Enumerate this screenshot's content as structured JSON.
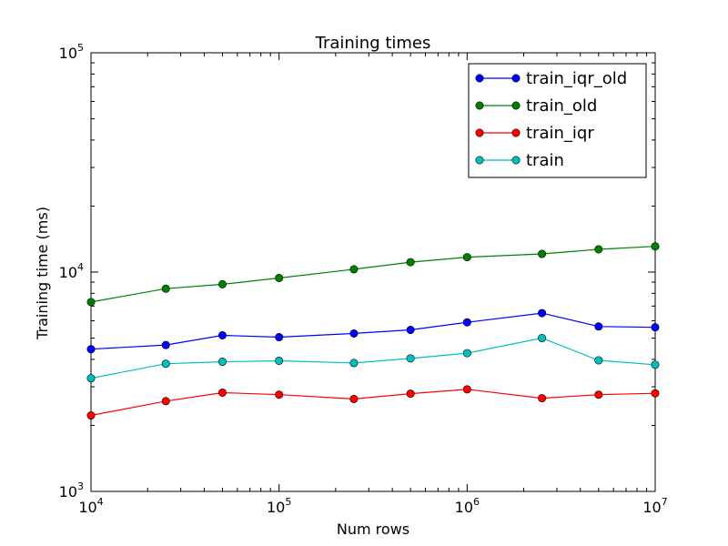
{
  "chart_data": {
    "type": "line",
    "title": "Training times",
    "xlabel": "Num rows",
    "ylabel": "Training time (ms)",
    "x_scale": "log",
    "y_scale": "log",
    "xlim": [
      10000,
      10000000
    ],
    "ylim": [
      1000,
      100000
    ],
    "x_ticks": [
      {
        "value": 10000,
        "base": "10",
        "exp": "4"
      },
      {
        "value": 100000,
        "base": "10",
        "exp": "5"
      },
      {
        "value": 1000000,
        "base": "10",
        "exp": "6"
      },
      {
        "value": 10000000,
        "base": "10",
        "exp": "7"
      }
    ],
    "y_ticks": [
      {
        "value": 1000,
        "base": "10",
        "exp": "3"
      },
      {
        "value": 10000,
        "base": "10",
        "exp": "4"
      },
      {
        "value": 100000,
        "base": "10",
        "exp": "5"
      }
    ],
    "grid": false,
    "legend_position": "top-right",
    "x": [
      10000,
      25000,
      50000,
      100000,
      250000,
      500000,
      1000000,
      2500000,
      5000000,
      10000000
    ],
    "series": [
      {
        "name": "train_iqr_old",
        "color": "#0000ff",
        "values": [
          4450,
          4650,
          5150,
          5050,
          5250,
          5450,
          5900,
          6500,
          5650,
          5600
        ]
      },
      {
        "name": "train_old",
        "color": "#008000",
        "values": [
          7300,
          8400,
          8800,
          9400,
          10300,
          11100,
          11700,
          12100,
          12700,
          13100
        ]
      },
      {
        "name": "train_iqr",
        "color": "#ff0000",
        "values": [
          2220,
          2580,
          2820,
          2760,
          2640,
          2790,
          2920,
          2660,
          2760,
          2800
        ]
      },
      {
        "name": "train",
        "color": "#00bfbf",
        "values": [
          3280,
          3820,
          3900,
          3940,
          3850,
          4040,
          4270,
          5000,
          3960,
          3780
        ]
      }
    ]
  }
}
